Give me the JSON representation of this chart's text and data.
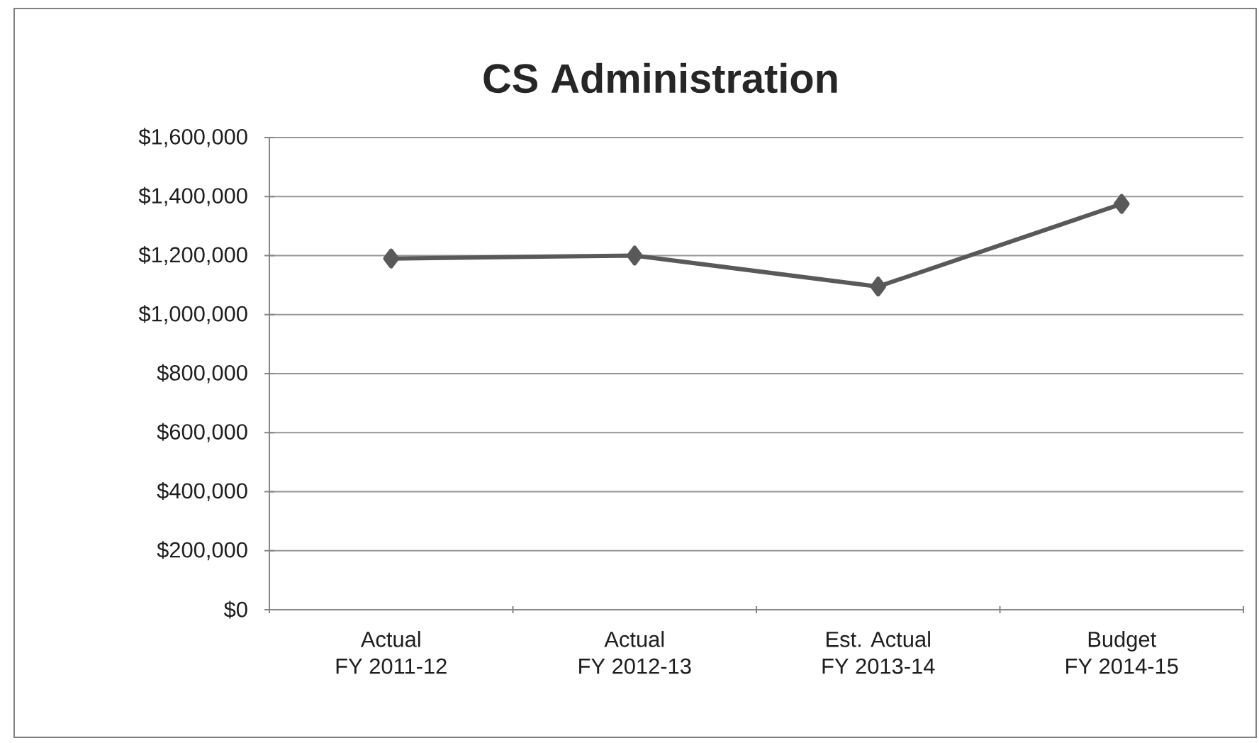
{
  "chart_data": {
    "type": "line",
    "title": "CS Administration",
    "categories": [
      "Actual\nFY 2011-12",
      "Actual\nFY 2012-13",
      "Est. Actual\nFY 2013-14",
      "Budget\nFY 2014-15"
    ],
    "series": [
      {
        "color": "#595959",
        "values": [
          1190000,
          1200000,
          1095000,
          1375000
        ]
      }
    ],
    "ylim": [
      0,
      1600000
    ],
    "yticks": [
      {
        "value": 0,
        "label": "$0"
      },
      {
        "value": 200000,
        "label": "$200,000"
      },
      {
        "value": 400000,
        "label": "$400,000"
      },
      {
        "value": 600000,
        "label": "$600,000"
      },
      {
        "value": 800000,
        "label": "$800,000"
      },
      {
        "value": 1000000,
        "label": "$1,000,000"
      },
      {
        "value": 1200000,
        "label": "$1,200,000"
      },
      {
        "value": 1400000,
        "label": "$1,400,000"
      },
      {
        "value": 1600000,
        "label": "$1,600,000"
      }
    ],
    "grid": "y",
    "marker": "diamond",
    "line_style": "solid"
  }
}
